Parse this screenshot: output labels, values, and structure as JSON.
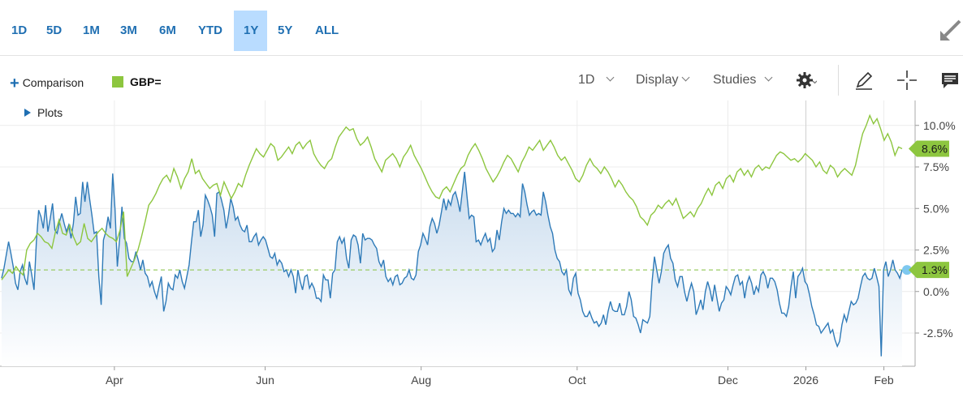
{
  "ranges": [
    {
      "label": "1D",
      "active": false
    },
    {
      "label": "5D",
      "active": false
    },
    {
      "label": "1M",
      "active": false
    },
    {
      "label": "3M",
      "active": false
    },
    {
      "label": "6M",
      "active": false
    },
    {
      "label": "YTD",
      "active": false
    },
    {
      "label": "1Y",
      "active": true
    },
    {
      "label": "5Y",
      "active": false
    },
    {
      "label": "ALL",
      "active": false
    }
  ],
  "toolbar": {
    "comparison_label": "Comparison",
    "symbol": "GBP=",
    "symbol_color": "#8dc63f",
    "interval": "1D",
    "display": "Display",
    "studies": "Studies",
    "icons": [
      "gear-icon",
      "pencil-icon",
      "crosshair-icon",
      "comment-icon"
    ]
  },
  "plots_label": "Plots",
  "chart_data": {
    "type": "line",
    "y_unit": "%",
    "ylim": [
      -4.5,
      11.5
    ],
    "y_ticks": [
      10.0,
      7.5,
      5.0,
      2.5,
      0.0,
      -2.5
    ],
    "y_tick_labels": [
      "10.0%",
      "7.5%",
      "5.0%",
      "2.5%",
      "0.0%",
      "-2.5%"
    ],
    "x_labels": [
      {
        "label": "Apr",
        "t": 12
      },
      {
        "label": "Jun",
        "t": 41
      },
      {
        "label": "Aug",
        "t": 71
      },
      {
        "label": "Oct",
        "t": 101
      },
      {
        "label": "Dec",
        "t": 130
      },
      {
        "label": "2026",
        "t": 145
      },
      {
        "label": "Feb",
        "t": 160
      }
    ],
    "x_range": [
      -10,
      166
    ],
    "grid": true,
    "baseline_value": 1.3,
    "series": [
      {
        "name": "GBP=",
        "color": "#8dc63f",
        "last_label": "8.6%",
        "values": [
          0.7,
          1.0,
          1.3,
          1.1,
          1.5,
          1.2,
          1.0,
          2.5,
          2.9,
          3.1,
          3.5,
          3.3,
          3.0,
          2.9,
          2.6,
          3.6,
          4.3,
          3.5,
          3.4,
          4.0,
          3.3,
          2.8,
          3.0,
          4.1,
          3.2,
          3.0,
          3.3,
          3.6,
          3.8,
          3.5,
          3.3,
          3.2,
          3.0,
          3.7,
          4.8,
          0.9,
          1.4,
          1.9,
          2.5,
          3.3,
          4.2,
          5.2,
          5.5,
          5.9,
          6.4,
          6.8,
          7.0,
          6.6,
          7.4,
          6.9,
          6.2,
          6.8,
          7.2,
          8.0,
          7.1,
          7.3,
          6.8,
          6.5,
          6.2,
          6.4,
          6.5,
          5.8,
          6.6,
          6.1,
          5.6,
          6.0,
          6.5,
          6.3,
          7.0,
          7.6,
          8.1,
          8.6,
          8.3,
          8.1,
          8.5,
          8.9,
          8.7,
          7.9,
          8.1,
          8.4,
          8.7,
          8.3,
          8.8,
          9.0,
          8.6,
          8.9,
          9.1,
          8.3,
          7.9,
          7.6,
          7.4,
          7.8,
          8.0,
          8.7,
          9.3,
          9.6,
          9.9,
          9.7,
          9.8,
          9.2,
          8.8,
          9.0,
          9.3,
          8.7,
          8.0,
          7.6,
          7.2,
          7.9,
          8.1,
          8.3,
          8.0,
          7.5,
          8.1,
          8.4,
          8.8,
          8.2,
          7.8,
          7.4,
          6.9,
          6.4,
          6.0,
          5.7,
          5.6,
          6.1,
          6.3,
          6.0,
          6.5,
          7.0,
          7.4,
          7.6,
          8.2,
          8.6,
          8.9,
          8.5,
          8.0,
          7.4,
          7.0,
          6.6,
          6.9,
          7.3,
          7.8,
          8.2,
          8.0,
          7.6,
          7.2,
          7.8,
          8.2,
          8.7,
          8.5,
          8.8,
          9.1,
          8.5,
          8.8,
          9.1,
          8.7,
          8.2,
          7.9,
          8.1,
          7.7,
          7.3,
          6.8,
          6.6,
          7.0,
          7.6,
          8.0,
          7.6,
          7.4,
          7.1,
          7.5,
          7.2,
          6.8,
          6.3,
          6.7,
          6.4,
          6.0,
          5.7,
          5.5,
          5.1,
          4.5,
          4.3,
          4.0,
          4.6,
          4.8,
          5.2,
          5.0,
          5.3,
          5.5,
          5.2,
          5.6,
          5.0,
          4.4,
          4.6,
          4.8,
          4.5,
          5.0,
          5.3,
          5.8,
          6.2,
          5.8,
          6.4,
          6.6,
          6.2,
          6.8,
          7.0,
          6.6,
          7.2,
          7.4,
          7.0,
          7.3,
          6.9,
          7.4,
          7.6,
          7.3,
          7.5,
          7.4,
          7.8,
          8.2,
          8.4,
          8.3,
          8.1,
          7.9,
          8.0,
          7.8,
          8.0,
          8.3,
          8.1,
          7.9,
          7.5,
          7.8,
          7.3,
          7.1,
          7.6,
          7.4,
          6.9,
          7.2,
          7.4,
          7.2,
          7.0,
          7.6,
          8.6,
          9.5,
          10.0,
          10.6,
          10.1,
          10.4,
          9.8,
          9.1,
          9.5,
          9.0,
          8.2,
          8.7,
          8.6
        ]
      },
      {
        "name": "",
        "color": "#2e7ab8",
        "last_label": "1.3%",
        "values": [
          0.8,
          1.4,
          2.2,
          3.0,
          2.3,
          1.5,
          0.5,
          0.1,
          1.2,
          1.6,
          0.8,
          0.4,
          1.8,
          1.0,
          0.1,
          3.0,
          4.9,
          4.5,
          3.8,
          5.2,
          3.6,
          4.4,
          5.3,
          3.7,
          3.5,
          4.2,
          4.7,
          4.1,
          3.6,
          4.0,
          3.2,
          4.1,
          5.7,
          4.6,
          4.7,
          6.6,
          5.4,
          6.6,
          5.6,
          4.6,
          3.5,
          3.6,
          0.9,
          -0.8,
          3.1,
          3.6,
          4.5,
          3.8,
          7.1,
          4.9,
          1.5,
          3.2,
          5.1,
          3.2,
          2.9,
          2.0,
          1.8,
          1.8,
          2.4,
          1.9,
          1.3,
          1.9,
          1.1,
          0.9,
          0.3,
          0.6,
          0.0,
          -0.4,
          0.3,
          0.9,
          -1.2,
          -0.6,
          0.5,
          0.2,
          0.1,
          1.0,
          0.8,
          1.3,
          0.6,
          0.2,
          0.9,
          1.6,
          3.0,
          4.2,
          4.2,
          4.9,
          3.3,
          4.0,
          5.8,
          5.5,
          5.1,
          4.6,
          3.3,
          5.9,
          6.0,
          5.5,
          4.9,
          3.8,
          4.6,
          5.6,
          5.1,
          4.3,
          4.5,
          4.0,
          3.7,
          3.6,
          4.0,
          3.0,
          3.0,
          3.3,
          3.5,
          2.8,
          3.1,
          3.3,
          3.1,
          2.6,
          2.1,
          2.0,
          2.3,
          1.6,
          1.9,
          1.7,
          1.2,
          1.3,
          0.9,
          1.3,
          0.9,
          -0.1,
          1.3,
          0.6,
          0.1,
          0.9,
          1.0,
          0.2,
          0.5,
          0.2,
          -0.4,
          -0.4,
          -0.6,
          1.0,
          0.7,
          0.7,
          -0.4,
          1.1,
          1.3,
          3.0,
          3.3,
          2.9,
          3.2,
          2.0,
          1.4,
          3.1,
          3.4,
          3.3,
          2.8,
          1.7,
          3.5,
          3.1,
          3.2,
          3.2,
          3.1,
          2.8,
          2.6,
          1.8,
          1.5,
          1.9,
          0.9,
          0.6,
          0.8,
          0.4,
          0.9,
          1.0,
          0.4,
          0.5,
          0.8,
          0.9,
          1.3,
          0.8,
          0.7,
          1.0,
          2.4,
          2.8,
          3.5,
          3.2,
          2.8,
          3.9,
          4.4,
          4.1,
          3.5,
          4.0,
          4.8,
          5.6,
          4.9,
          5.5,
          5.2,
          5.8,
          6.0,
          5.5,
          4.8,
          6.0,
          7.2,
          5.8,
          4.4,
          4.6,
          4.5,
          3.0,
          3.1,
          2.8,
          3.2,
          3.5,
          3.0,
          3.2,
          2.4,
          2.6,
          3.7,
          3.1,
          4.2,
          5.0,
          4.7,
          4.9,
          4.7,
          4.7,
          4.5,
          4.7,
          4.5,
          6.5,
          6.0,
          5.2,
          4.6,
          4.8,
          4.9,
          4.6,
          4.7,
          4.6,
          6.0,
          5.4,
          4.6,
          3.9,
          3.5,
          2.5,
          2.0,
          1.8,
          1.2,
          1.0,
          1.3,
          0.1,
          -0.2,
          0.8,
          1.1,
          -0.1,
          -0.5,
          -1.2,
          -1.5,
          -1.5,
          -1.2,
          -1.6,
          -1.9,
          -1.8,
          -2.1,
          -1.9,
          -1.4,
          -2.0,
          -1.2,
          -0.6,
          -1.1,
          -1.2,
          -1.2,
          -0.7,
          -1.4,
          -1.4,
          -0.9,
          0.0,
          -0.5,
          -1.5,
          -1.6,
          -2.0,
          -2.5,
          -1.7,
          -1.8,
          -1.9,
          -1.5,
          0.6,
          2.1,
          1.3,
          0.5,
          1.2,
          2.3,
          2.6,
          2.8,
          2.0,
          1.7,
          0.7,
          0.3,
          0.9,
          0.9,
          0.0,
          -0.6,
          0.0,
          0.5,
          0.0,
          -1.4,
          -1.0,
          -0.5,
          -1.1,
          0.0,
          0.6,
          0.1,
          -0.6,
          0.4,
          -0.4,
          -1.2,
          -0.7,
          -0.5,
          0.3,
          0.1,
          -0.2,
          0.4,
          0.9,
          1.0,
          0.4,
          0.6,
          -0.4,
          0.5,
          0.9,
          0.5,
          -0.2,
          0.3,
          0.0,
          1.0,
          1.2,
          0.9,
          0.2,
          0.8,
          0.8,
          0.6,
          0.1,
          -0.7,
          -1.3,
          -1.3,
          -1.5,
          -0.9,
          0.3,
          1.2,
          -0.4,
          0.9,
          1.1,
          1.4,
          0.6,
          0.4,
          -0.2,
          -0.9,
          -1.4,
          -2.0,
          -2.1,
          -2.5,
          -2.3,
          -2.1,
          -1.9,
          -2.5,
          -2.3,
          -2.9,
          -3.3,
          -3.0,
          -2.0,
          -1.4,
          -1.8,
          -1.2,
          -0.6,
          -0.8,
          -0.7,
          -0.4,
          0.3,
          0.9,
          1.1,
          0.8,
          0.7,
          0.8,
          1.4,
          0.9,
          0.3,
          -3.9,
          1.3,
          1.8,
          0.9,
          1.3,
          1.9,
          1.3,
          1.1,
          0.8,
          1.3
        ]
      }
    ]
  }
}
